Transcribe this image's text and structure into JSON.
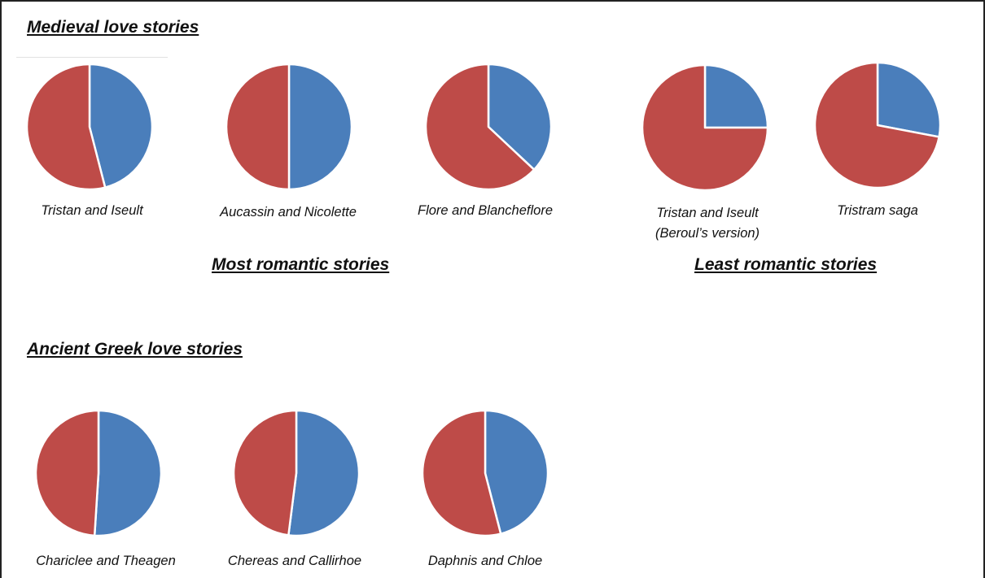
{
  "titles": {
    "medieval": "Medieval love stories",
    "ancient_greek": "Ancient Greek love stories",
    "most_romantic": "Most romantic stories",
    "least_romantic": "Least romantic stories"
  },
  "colors": {
    "blue": "#4a7ebb",
    "red": "#be4b48",
    "slice_border": "#ffffff"
  },
  "chart_data": [
    {
      "type": "pie",
      "title": "Tristan and Iseult",
      "labels": [
        "blue",
        "red"
      ],
      "values": [
        46,
        54
      ]
    },
    {
      "type": "pie",
      "title": "Aucassin and Nicolette",
      "labels": [
        "blue",
        "red"
      ],
      "values": [
        50,
        50
      ]
    },
    {
      "type": "pie",
      "title": "Flore and Blancheflore",
      "labels": [
        "blue",
        "red"
      ],
      "values": [
        37,
        63
      ]
    },
    {
      "type": "pie",
      "title": "Tristan and Iseult",
      "subtitle": "(Beroul’s version)",
      "labels": [
        "blue",
        "red"
      ],
      "values": [
        25,
        75
      ]
    },
    {
      "type": "pie",
      "title": "Tristram saga",
      "labels": [
        "blue",
        "red"
      ],
      "values": [
        28,
        72
      ]
    },
    {
      "type": "pie",
      "title": "Chariclee and Theagen",
      "labels": [
        "blue",
        "red"
      ],
      "values": [
        51,
        49
      ]
    },
    {
      "type": "pie",
      "title": "Chereas and Callirhoe",
      "labels": [
        "blue",
        "red"
      ],
      "values": [
        52,
        48
      ]
    },
    {
      "type": "pie",
      "title": "Daphnis and Chloe",
      "labels": [
        "blue",
        "red"
      ],
      "values": [
        46,
        54
      ]
    }
  ]
}
